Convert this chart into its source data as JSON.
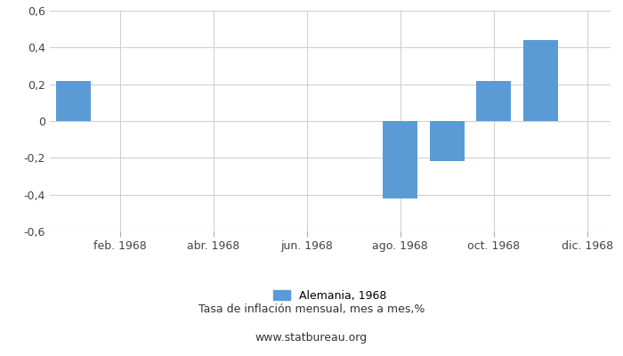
{
  "month_indices": [
    1,
    2,
    3,
    4,
    5,
    6,
    7,
    8,
    9,
    10,
    11,
    12
  ],
  "values": [
    0.22,
    null,
    null,
    null,
    null,
    null,
    null,
    -0.42,
    -0.22,
    0.22,
    0.44,
    null
  ],
  "bar_color": "#5b9bd5",
  "ylim": [
    -0.6,
    0.6
  ],
  "yticks": [
    -0.6,
    -0.4,
    -0.2,
    0.0,
    0.2,
    0.4,
    0.6
  ],
  "xtick_labels": [
    "feb. 1968",
    "abr. 1968",
    "jun. 1968",
    "ago. 1968",
    "oct. 1968",
    "dic. 1968"
  ],
  "xtick_positions": [
    2,
    4,
    6,
    8,
    10,
    12
  ],
  "xlim": [
    0.5,
    12.5
  ],
  "legend_label": "Alemania, 1968",
  "subtitle": "Tasa de inflación mensual, mes a mes,%",
  "website": "www.statbureau.org",
  "background_color": "#ffffff",
  "grid_color": "#d0d0d0",
  "bar_width": 0.75,
  "tick_fontsize": 9,
  "legend_fontsize": 9,
  "subtitle_fontsize": 9
}
